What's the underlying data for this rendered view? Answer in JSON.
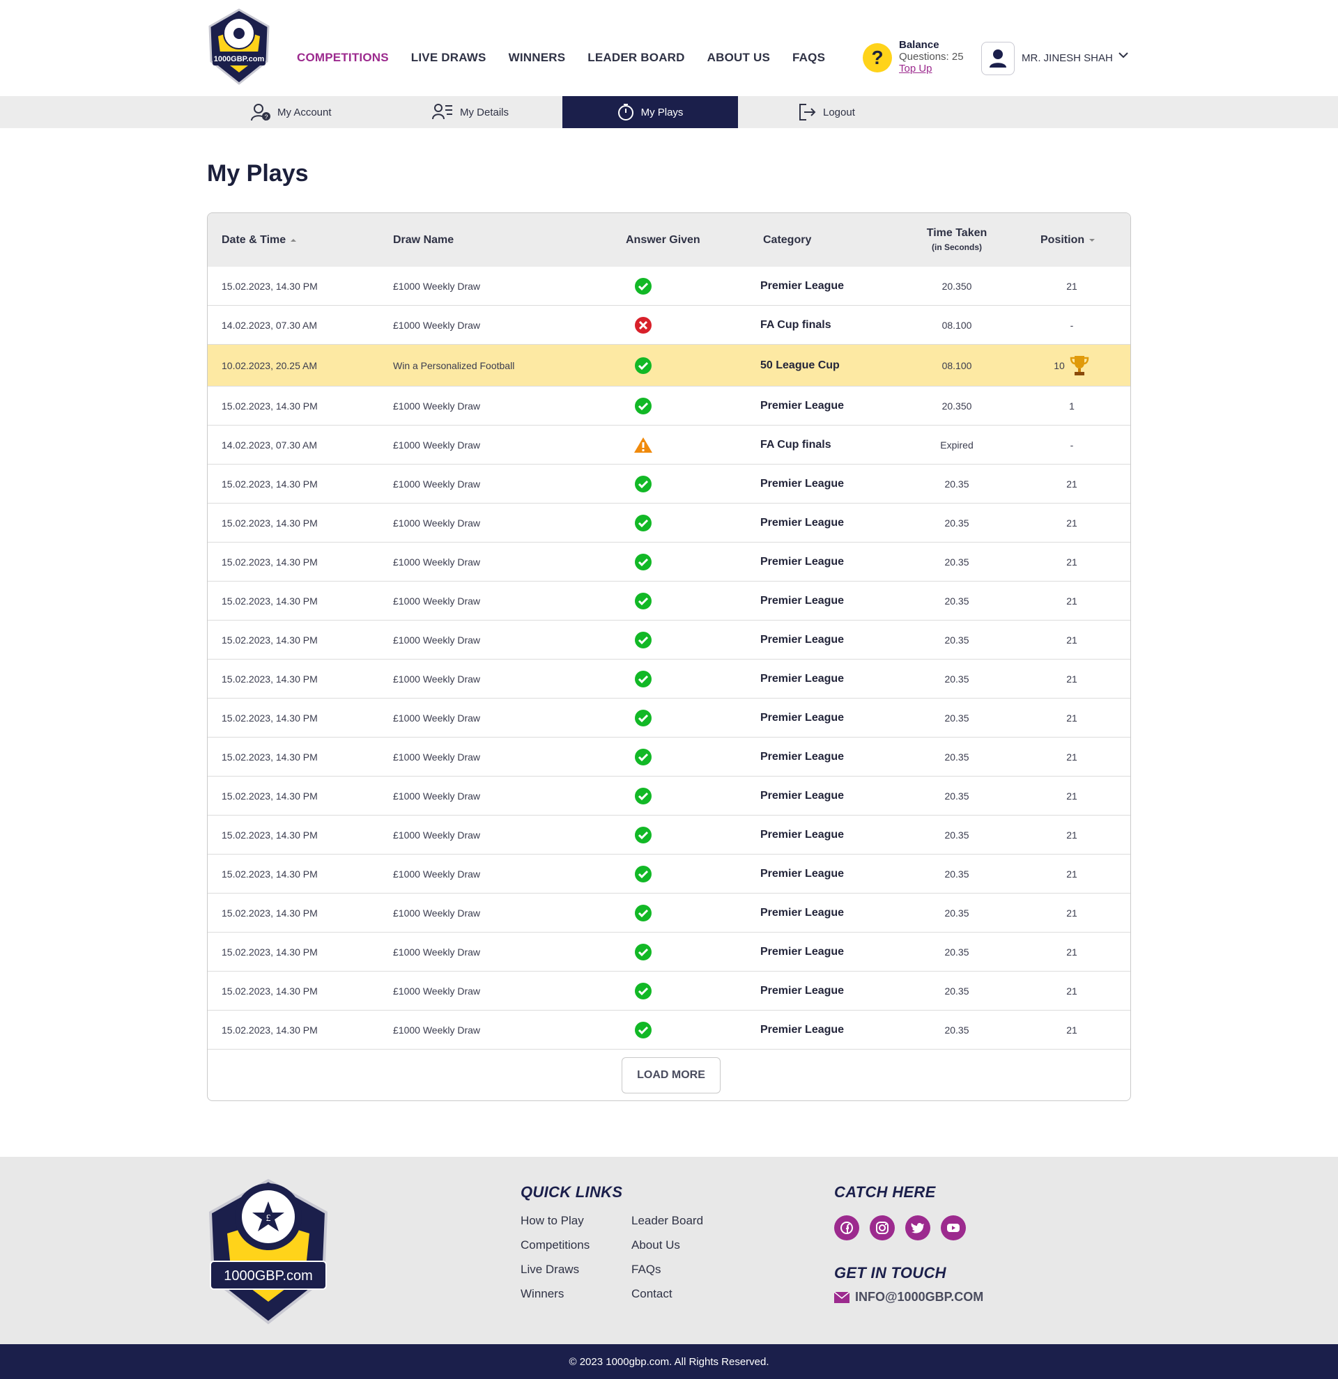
{
  "brand": {
    "logo_text": "1000GBP.com",
    "footer_logo_text": "1000GBP.com",
    "accent": "#9c2a8e",
    "navy": "#1b1f4b",
    "yellow": "#ffd31a"
  },
  "nav": [
    {
      "label": "COMPETITIONS",
      "active": true
    },
    {
      "label": "LIVE DRAWS",
      "active": false
    },
    {
      "label": "WINNERS",
      "active": false
    },
    {
      "label": "LEADER BOARD",
      "active": false
    },
    {
      "label": "ABOUT US",
      "active": false
    },
    {
      "label": "FAQS",
      "active": false
    }
  ],
  "balance": {
    "icon": "?",
    "title": "Balance",
    "questions": "Questions: 25",
    "topup": "Top Up"
  },
  "user": {
    "name": "MR. JINESH SHAH"
  },
  "subnav": [
    {
      "label": "My Account",
      "icon": "account-icon"
    },
    {
      "label": "My Details",
      "icon": "details-icon"
    },
    {
      "label": "My Plays",
      "icon": "timer-icon",
      "active": true
    },
    {
      "label": "Logout",
      "icon": "logout-icon"
    }
  ],
  "page": {
    "title": "My Plays"
  },
  "table": {
    "headers": {
      "date": "Date & Time",
      "draw": "Draw Name",
      "answer": "Answer Given",
      "category": "Category",
      "time": "Time Taken",
      "time_sub": "(in Seconds)",
      "position": "Position"
    },
    "rows": [
      {
        "date": "15.02.2023, 14.30 PM",
        "draw": "£1000 Weekly Draw",
        "answer": "correct",
        "category": "Premier League",
        "time": "20.350",
        "position": "21"
      },
      {
        "date": "14.02.2023, 07.30 AM",
        "draw": "£1000 Weekly Draw",
        "answer": "wrong",
        "category": "FA Cup finals",
        "time": "08.100",
        "position": "-"
      },
      {
        "date": "10.02.2023, 20.25 AM",
        "draw": "Win a Personalized Football",
        "answer": "correct",
        "category": "50 League Cup",
        "time": "08.100",
        "position": "10",
        "highlight": true,
        "trophy": true
      },
      {
        "date": "15.02.2023, 14.30 PM",
        "draw": "£1000 Weekly Draw",
        "answer": "correct",
        "category": "Premier League",
        "time": "20.350",
        "position": "1"
      },
      {
        "date": "14.02.2023, 07.30 AM",
        "draw": "£1000 Weekly Draw",
        "answer": "warning",
        "category": "FA Cup finals",
        "time": "Expired",
        "position": "-"
      },
      {
        "date": "15.02.2023, 14.30 PM",
        "draw": "£1000 Weekly Draw",
        "answer": "correct",
        "category": "Premier League",
        "time": "20.35",
        "position": "21"
      },
      {
        "date": "15.02.2023, 14.30 PM",
        "draw": "£1000 Weekly Draw",
        "answer": "correct",
        "category": "Premier League",
        "time": "20.35",
        "position": "21"
      },
      {
        "date": "15.02.2023, 14.30 PM",
        "draw": "£1000 Weekly Draw",
        "answer": "correct",
        "category": "Premier League",
        "time": "20.35",
        "position": "21"
      },
      {
        "date": "15.02.2023, 14.30 PM",
        "draw": "£1000 Weekly Draw",
        "answer": "correct",
        "category": "Premier League",
        "time": "20.35",
        "position": "21"
      },
      {
        "date": "15.02.2023, 14.30 PM",
        "draw": "£1000 Weekly Draw",
        "answer": "correct",
        "category": "Premier League",
        "time": "20.35",
        "position": "21"
      },
      {
        "date": "15.02.2023, 14.30 PM",
        "draw": "£1000 Weekly Draw",
        "answer": "correct",
        "category": "Premier League",
        "time": "20.35",
        "position": "21"
      },
      {
        "date": "15.02.2023, 14.30 PM",
        "draw": "£1000 Weekly Draw",
        "answer": "correct",
        "category": "Premier League",
        "time": "20.35",
        "position": "21"
      },
      {
        "date": "15.02.2023, 14.30 PM",
        "draw": "£1000 Weekly Draw",
        "answer": "correct",
        "category": "Premier League",
        "time": "20.35",
        "position": "21"
      },
      {
        "date": "15.02.2023, 14.30 PM",
        "draw": "£1000 Weekly Draw",
        "answer": "correct",
        "category": "Premier League",
        "time": "20.35",
        "position": "21"
      },
      {
        "date": "15.02.2023, 14.30 PM",
        "draw": "£1000 Weekly Draw",
        "answer": "correct",
        "category": "Premier League",
        "time": "20.35",
        "position": "21"
      },
      {
        "date": "15.02.2023, 14.30 PM",
        "draw": "£1000 Weekly Draw",
        "answer": "correct",
        "category": "Premier League",
        "time": "20.35",
        "position": "21"
      },
      {
        "date": "15.02.2023, 14.30 PM",
        "draw": "£1000 Weekly Draw",
        "answer": "correct",
        "category": "Premier League",
        "time": "20.35",
        "position": "21"
      },
      {
        "date": "15.02.2023, 14.30 PM",
        "draw": "£1000 Weekly Draw",
        "answer": "correct",
        "category": "Premier League",
        "time": "20.35",
        "position": "21"
      },
      {
        "date": "15.02.2023, 14.30 PM",
        "draw": "£1000 Weekly Draw",
        "answer": "correct",
        "category": "Premier League",
        "time": "20.35",
        "position": "21"
      },
      {
        "date": "15.02.2023, 14.30 PM",
        "draw": "£1000 Weekly Draw",
        "answer": "correct",
        "category": "Premier League",
        "time": "20.35",
        "position": "21"
      }
    ],
    "load_more": "LOAD MORE"
  },
  "footer": {
    "quick_links_title": "QUICK LINKS",
    "links_col1": [
      "How to Play",
      "Competitions",
      "Live Draws",
      "Winners"
    ],
    "links_col2": [
      "Leader Board",
      "About Us",
      "FAQs",
      "Contact"
    ],
    "catch_title": "CATCH HERE",
    "social": [
      "facebook-icon",
      "instagram-icon",
      "twitter-icon",
      "youtube-icon"
    ],
    "contact_title": "GET IN TOUCH",
    "email": "INFO@1000GBP.COM",
    "copyright": "© 2023 1000gbp.com. All Rights Reserved."
  }
}
